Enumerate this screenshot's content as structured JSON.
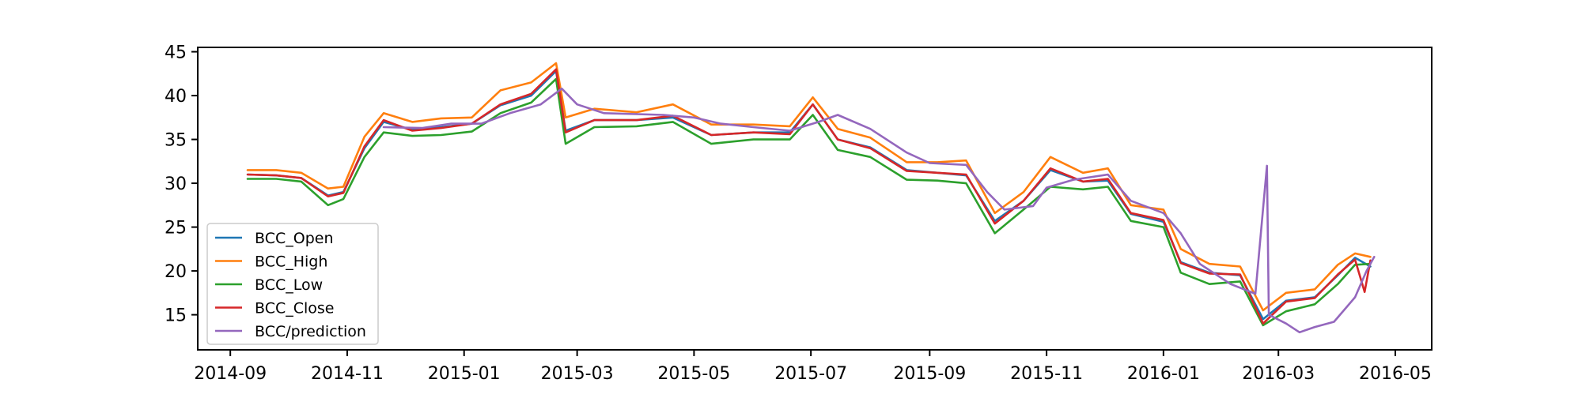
{
  "chart_data": {
    "type": "line",
    "title": "",
    "xlabel": "",
    "ylabel": "",
    "x_ticks": [
      "2014-09",
      "2014-11",
      "2015-01",
      "2015-03",
      "2015-05",
      "2015-07",
      "2015-09",
      "2015-11",
      "2016-01",
      "2016-03",
      "2016-05"
    ],
    "y_ticks": [
      15,
      20,
      25,
      30,
      35,
      40,
      45
    ],
    "xlim": [
      "2014-08-15",
      "2016-05-20"
    ],
    "ylim": [
      11,
      45.5
    ],
    "grid": false,
    "legend_position": "lower-left",
    "series": [
      {
        "name": "BCC_Open",
        "color": "#1f77b4",
        "points": [
          [
            "2014-09-10",
            31.0
          ],
          [
            "2014-09-25",
            30.9
          ],
          [
            "2014-10-08",
            30.6
          ],
          [
            "2014-10-22",
            28.6
          ],
          [
            "2014-10-30",
            29.0
          ],
          [
            "2014-11-10",
            34.0
          ],
          [
            "2014-11-20",
            37.0
          ],
          [
            "2014-12-05",
            36.1
          ],
          [
            "2014-12-20",
            36.4
          ],
          [
            "2015-01-05",
            36.8
          ],
          [
            "2015-01-20",
            38.9
          ],
          [
            "2015-02-05",
            40.0
          ],
          [
            "2015-02-18",
            42.8
          ],
          [
            "2015-02-23",
            36.0
          ],
          [
            "2015-03-10",
            37.2
          ],
          [
            "2015-04-01",
            37.2
          ],
          [
            "2015-04-20",
            37.5
          ],
          [
            "2015-05-10",
            35.5
          ],
          [
            "2015-06-01",
            35.8
          ],
          [
            "2015-06-20",
            35.8
          ],
          [
            "2015-07-02",
            39.0
          ],
          [
            "2015-07-15",
            35.0
          ],
          [
            "2015-08-01",
            34.1
          ],
          [
            "2015-08-20",
            31.5
          ],
          [
            "2015-09-05",
            31.2
          ],
          [
            "2015-09-20",
            30.9
          ],
          [
            "2015-10-05",
            25.7
          ],
          [
            "2015-10-20",
            28.0
          ],
          [
            "2015-11-03",
            31.5
          ],
          [
            "2015-11-20",
            30.2
          ],
          [
            "2015-12-03",
            30.3
          ],
          [
            "2015-12-15",
            26.5
          ],
          [
            "2016-01-01",
            25.6
          ],
          [
            "2016-01-10",
            21.0
          ],
          [
            "2016-01-25",
            19.8
          ],
          [
            "2016-02-10",
            19.5
          ],
          [
            "2016-02-22",
            14.5
          ],
          [
            "2016-03-05",
            16.6
          ],
          [
            "2016-03-20",
            17.0
          ],
          [
            "2016-04-01",
            19.5
          ],
          [
            "2016-04-10",
            21.5
          ],
          [
            "2016-04-18",
            20.5
          ]
        ]
      },
      {
        "name": "BCC_High",
        "color": "#ff7f0e",
        "points": [
          [
            "2014-09-10",
            31.5
          ],
          [
            "2014-09-25",
            31.5
          ],
          [
            "2014-10-08",
            31.2
          ],
          [
            "2014-10-22",
            29.4
          ],
          [
            "2014-10-30",
            29.6
          ],
          [
            "2014-11-10",
            35.3
          ],
          [
            "2014-11-20",
            38.0
          ],
          [
            "2014-12-05",
            37.0
          ],
          [
            "2014-12-20",
            37.4
          ],
          [
            "2015-01-05",
            37.5
          ],
          [
            "2015-01-20",
            40.6
          ],
          [
            "2015-02-05",
            41.5
          ],
          [
            "2015-02-18",
            43.7
          ],
          [
            "2015-02-23",
            37.5
          ],
          [
            "2015-03-10",
            38.5
          ],
          [
            "2015-04-01",
            38.1
          ],
          [
            "2015-04-20",
            39.0
          ],
          [
            "2015-05-10",
            36.7
          ],
          [
            "2015-06-01",
            36.7
          ],
          [
            "2015-06-20",
            36.5
          ],
          [
            "2015-07-02",
            39.8
          ],
          [
            "2015-07-15",
            36.2
          ],
          [
            "2015-08-01",
            35.2
          ],
          [
            "2015-08-20",
            32.4
          ],
          [
            "2015-09-05",
            32.4
          ],
          [
            "2015-09-20",
            32.6
          ],
          [
            "2015-10-05",
            26.6
          ],
          [
            "2015-10-20",
            29.0
          ],
          [
            "2015-11-03",
            33.0
          ],
          [
            "2015-11-20",
            31.2
          ],
          [
            "2015-12-03",
            31.7
          ],
          [
            "2015-12-15",
            27.5
          ],
          [
            "2016-01-01",
            27.0
          ],
          [
            "2016-01-10",
            22.5
          ],
          [
            "2016-01-25",
            20.8
          ],
          [
            "2016-02-10",
            20.5
          ],
          [
            "2016-02-22",
            15.5
          ],
          [
            "2016-03-05",
            17.5
          ],
          [
            "2016-03-20",
            17.9
          ],
          [
            "2016-04-01",
            20.7
          ],
          [
            "2016-04-10",
            22.0
          ],
          [
            "2016-04-18",
            21.6
          ]
        ]
      },
      {
        "name": "BCC_Low",
        "color": "#2ca02c",
        "points": [
          [
            "2014-09-10",
            30.5
          ],
          [
            "2014-09-25",
            30.5
          ],
          [
            "2014-10-08",
            30.2
          ],
          [
            "2014-10-22",
            27.5
          ],
          [
            "2014-10-30",
            28.2
          ],
          [
            "2014-11-10",
            33.0
          ],
          [
            "2014-11-20",
            35.8
          ],
          [
            "2014-12-05",
            35.4
          ],
          [
            "2014-12-20",
            35.5
          ],
          [
            "2015-01-05",
            35.9
          ],
          [
            "2015-01-20",
            38.0
          ],
          [
            "2015-02-05",
            39.2
          ],
          [
            "2015-02-18",
            41.9
          ],
          [
            "2015-02-23",
            34.5
          ],
          [
            "2015-03-10",
            36.4
          ],
          [
            "2015-04-01",
            36.5
          ],
          [
            "2015-04-20",
            37.0
          ],
          [
            "2015-05-10",
            34.5
          ],
          [
            "2015-06-01",
            35.0
          ],
          [
            "2015-06-20",
            35.0
          ],
          [
            "2015-07-02",
            37.8
          ],
          [
            "2015-07-15",
            33.8
          ],
          [
            "2015-08-01",
            33.0
          ],
          [
            "2015-08-20",
            30.4
          ],
          [
            "2015-09-05",
            30.3
          ],
          [
            "2015-09-20",
            30.0
          ],
          [
            "2015-10-05",
            24.3
          ],
          [
            "2015-10-20",
            27.0
          ],
          [
            "2015-11-03",
            29.6
          ],
          [
            "2015-11-20",
            29.3
          ],
          [
            "2015-12-03",
            29.6
          ],
          [
            "2015-12-15",
            25.7
          ],
          [
            "2016-01-01",
            25.0
          ],
          [
            "2016-01-10",
            19.8
          ],
          [
            "2016-01-25",
            18.5
          ],
          [
            "2016-02-10",
            18.8
          ],
          [
            "2016-02-22",
            13.8
          ],
          [
            "2016-03-05",
            15.4
          ],
          [
            "2016-03-20",
            16.2
          ],
          [
            "2016-04-01",
            18.5
          ],
          [
            "2016-04-10",
            20.7
          ],
          [
            "2016-04-18",
            20.8
          ]
        ]
      },
      {
        "name": "BCC_Close",
        "color": "#d62728",
        "points": [
          [
            "2014-09-10",
            31.0
          ],
          [
            "2014-09-25",
            30.9
          ],
          [
            "2014-10-08",
            30.6
          ],
          [
            "2014-10-22",
            28.5
          ],
          [
            "2014-10-30",
            28.9
          ],
          [
            "2014-11-10",
            34.2
          ],
          [
            "2014-11-20",
            37.2
          ],
          [
            "2014-12-05",
            36.0
          ],
          [
            "2014-12-20",
            36.3
          ],
          [
            "2015-01-05",
            36.8
          ],
          [
            "2015-01-20",
            39.0
          ],
          [
            "2015-02-05",
            40.2
          ],
          [
            "2015-02-18",
            43.0
          ],
          [
            "2015-02-23",
            35.8
          ],
          [
            "2015-03-10",
            37.2
          ],
          [
            "2015-04-01",
            37.2
          ],
          [
            "2015-04-20",
            37.7
          ],
          [
            "2015-05-10",
            35.5
          ],
          [
            "2015-06-01",
            35.8
          ],
          [
            "2015-06-20",
            35.6
          ],
          [
            "2015-07-02",
            39.0
          ],
          [
            "2015-07-15",
            35.0
          ],
          [
            "2015-08-01",
            34.0
          ],
          [
            "2015-08-20",
            31.4
          ],
          [
            "2015-09-05",
            31.2
          ],
          [
            "2015-09-20",
            31.0
          ],
          [
            "2015-10-05",
            25.4
          ],
          [
            "2015-10-20",
            28.0
          ],
          [
            "2015-11-03",
            31.7
          ],
          [
            "2015-11-20",
            30.2
          ],
          [
            "2015-12-03",
            30.5
          ],
          [
            "2015-12-15",
            26.6
          ],
          [
            "2016-01-01",
            25.8
          ],
          [
            "2016-01-10",
            20.9
          ],
          [
            "2016-01-25",
            19.7
          ],
          [
            "2016-02-10",
            19.6
          ],
          [
            "2016-02-22",
            14.0
          ],
          [
            "2016-03-05",
            16.5
          ],
          [
            "2016-03-20",
            16.9
          ],
          [
            "2016-04-01",
            19.6
          ],
          [
            "2016-04-10",
            21.3
          ],
          [
            "2016-04-15",
            17.6
          ],
          [
            "2016-04-18",
            21.2
          ]
        ]
      },
      {
        "name": "BCC/prediction",
        "color": "#9467bd",
        "points": [
          [
            "2014-11-20",
            36.4
          ],
          [
            "2014-12-10",
            36.3
          ],
          [
            "2014-12-25",
            36.8
          ],
          [
            "2015-01-10",
            36.8
          ],
          [
            "2015-01-25",
            38.0
          ],
          [
            "2015-02-10",
            39.0
          ],
          [
            "2015-02-21",
            40.8
          ],
          [
            "2015-03-01",
            39.0
          ],
          [
            "2015-03-15",
            38.0
          ],
          [
            "2015-04-15",
            37.8
          ],
          [
            "2015-05-01",
            37.5
          ],
          [
            "2015-05-15",
            36.8
          ],
          [
            "2015-06-01",
            36.4
          ],
          [
            "2015-06-20",
            36.0
          ],
          [
            "2015-07-05",
            37.0
          ],
          [
            "2015-07-15",
            37.8
          ],
          [
            "2015-08-01",
            36.2
          ],
          [
            "2015-08-20",
            33.5
          ],
          [
            "2015-09-01",
            32.3
          ],
          [
            "2015-09-20",
            32.1
          ],
          [
            "2015-10-01",
            29.0
          ],
          [
            "2015-10-10",
            27.0
          ],
          [
            "2015-10-25",
            27.4
          ],
          [
            "2015-11-01",
            29.5
          ],
          [
            "2015-11-15",
            30.4
          ],
          [
            "2015-12-03",
            31.0
          ],
          [
            "2015-12-15",
            28.0
          ],
          [
            "2016-01-01",
            26.6
          ],
          [
            "2016-01-10",
            24.3
          ],
          [
            "2016-01-20",
            20.8
          ],
          [
            "2016-02-05",
            18.5
          ],
          [
            "2016-02-18",
            17.4
          ],
          [
            "2016-02-24",
            32.0
          ],
          [
            "2016-02-25",
            15.0
          ],
          [
            "2016-03-05",
            14.0
          ],
          [
            "2016-03-12",
            13.0
          ],
          [
            "2016-03-20",
            13.6
          ],
          [
            "2016-03-30",
            14.2
          ],
          [
            "2016-04-10",
            17.0
          ],
          [
            "2016-04-16",
            20.0
          ],
          [
            "2016-04-20",
            21.6
          ]
        ]
      }
    ]
  }
}
